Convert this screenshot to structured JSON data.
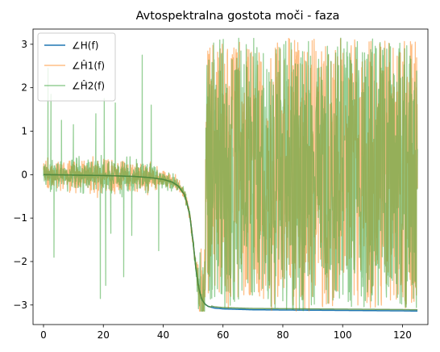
{
  "chart_data": {
    "type": "line",
    "title": "Avtospektralna gostota moči - faza",
    "xlabel": "",
    "ylabel": "",
    "xlim": [
      -3.5,
      128.5
    ],
    "ylim": [
      -3.45,
      3.35
    ],
    "xticks": [
      0,
      20,
      40,
      60,
      80,
      100,
      120
    ],
    "yticks": [
      -3,
      -2,
      -1,
      0,
      1,
      2,
      3
    ],
    "legend_position": "top-left",
    "grid": false,
    "series": [
      {
        "name": "∠H(f)",
        "color": "#1f77b4",
        "style": "smooth",
        "x": [
          0,
          10,
          20,
          30,
          36,
          40,
          43,
          45,
          47,
          48,
          49,
          50,
          51,
          52,
          53,
          54,
          55,
          57,
          60,
          65,
          70,
          80,
          90,
          100,
          110,
          120,
          125
        ],
        "y": [
          0,
          -0.01,
          -0.02,
          -0.04,
          -0.07,
          -0.11,
          -0.17,
          -0.26,
          -0.45,
          -0.65,
          -0.98,
          -1.55,
          -2.2,
          -2.65,
          -2.88,
          -2.98,
          -3.03,
          -3.07,
          -3.09,
          -3.1,
          -3.11,
          -3.115,
          -3.12,
          -3.125,
          -3.13,
          -3.135,
          -3.14
        ]
      },
      {
        "name": "∠Ĥ1(f)",
        "color": "#ff7f0e",
        "style": "noisy",
        "x_range": [
          0,
          125
        ],
        "samples": 1400,
        "envelope": [
          {
            "x": 0,
            "amp": 0.5
          },
          {
            "x": 20,
            "amp": 0.6
          },
          {
            "x": 35,
            "amp": 0.5
          },
          {
            "x": 40,
            "amp": 0.3
          },
          {
            "x": 45,
            "amp": 0.25
          },
          {
            "x": 48,
            "amp": 0.15
          },
          {
            "x": 51,
            "amp": 0.3
          },
          {
            "x": 53,
            "amp": 1.5
          },
          {
            "x": 56,
            "amp": 2.9
          },
          {
            "x": 125,
            "amp": 3.1
          }
        ]
      },
      {
        "name": "∠Ĥ2(f)",
        "color": "#2ca02c",
        "style": "noisy",
        "x_range": [
          0,
          125
        ],
        "samples": 1400,
        "envelope": [
          {
            "x": 0,
            "amp": 0.5
          },
          {
            "x": 20,
            "amp": 0.6
          },
          {
            "x": 35,
            "amp": 0.5
          },
          {
            "x": 40,
            "amp": 0.3
          },
          {
            "x": 45,
            "amp": 0.25
          },
          {
            "x": 48,
            "amp": 0.15
          },
          {
            "x": 51,
            "amp": 0.3
          },
          {
            "x": 53,
            "amp": 1.5
          },
          {
            "x": 56,
            "amp": 2.9
          },
          {
            "x": 125,
            "amp": 3.1
          }
        ],
        "spikes": [
          {
            "x": 1.5,
            "y": 2.45
          },
          {
            "x": 2.5,
            "y": 1.85
          },
          {
            "x": 3.5,
            "y": -1.9
          },
          {
            "x": 6,
            "y": 1.25
          },
          {
            "x": 10,
            "y": 1.15
          },
          {
            "x": 17.5,
            "y": 1.4
          },
          {
            "x": 19,
            "y": -2.85
          },
          {
            "x": 20.3,
            "y": 1.75
          },
          {
            "x": 20.8,
            "y": -2.55
          },
          {
            "x": 22.5,
            "y": -1.35
          },
          {
            "x": 24,
            "y": 1.65
          },
          {
            "x": 26.8,
            "y": -2.35
          },
          {
            "x": 29.5,
            "y": -1.4
          },
          {
            "x": 33,
            "y": 2.75
          },
          {
            "x": 36,
            "y": 1.6
          },
          {
            "x": 38.5,
            "y": -1.75
          }
        ]
      }
    ]
  }
}
